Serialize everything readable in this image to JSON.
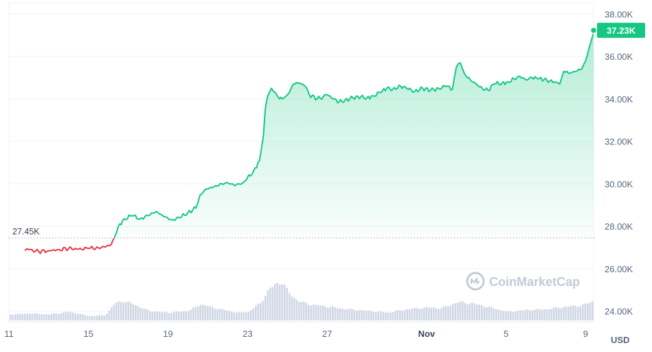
{
  "chart_data": {
    "type": "line",
    "title": "",
    "xlabel": "",
    "ylabel": "",
    "currency_unit": "USD",
    "watermark": "CoinMarketCap",
    "ylim": [
      23500,
      38400
    ],
    "y_ticks": [
      "38.00K",
      "36.00K",
      "34.00K",
      "32.00K",
      "30.00K",
      "28.00K",
      "26.00K",
      "24.00K"
    ],
    "y_tick_values": [
      38000,
      36000,
      34000,
      32000,
      30000,
      28000,
      26000,
      24000
    ],
    "x_range_days": [
      0,
      29.4
    ],
    "x_ticks": [
      {
        "label": "11",
        "day": 0
      },
      {
        "label": "15",
        "day": 4
      },
      {
        "label": "19",
        "day": 8
      },
      {
        "label": "23",
        "day": 12
      },
      {
        "label": "27",
        "day": 16
      },
      {
        "label": "Nov",
        "day": 21,
        "month": true
      },
      {
        "label": "5",
        "day": 25
      },
      {
        "label": "9",
        "day": 29
      }
    ],
    "reference_line": {
      "value": 27450,
      "label": "27.45K"
    },
    "last_price": {
      "value": 37230,
      "label": "37.23K"
    },
    "colors": {
      "up": "#16c784",
      "down": "#ea3943",
      "volume": "#cfd6e4",
      "badge": "#16c784"
    },
    "series": [
      {
        "points": [
          [
            0.8,
            26850
          ],
          [
            1.0,
            26900
          ],
          [
            1.5,
            26800
          ],
          [
            2.0,
            26850
          ],
          [
            2.5,
            26900
          ],
          [
            3.0,
            26950
          ],
          [
            3.5,
            26920
          ],
          [
            4.0,
            26950
          ],
          [
            4.5,
            26980
          ],
          [
            4.9,
            27050
          ],
          [
            5.15,
            27150
          ],
          [
            5.3,
            27450
          ],
          [
            5.5,
            28000
          ],
          [
            5.8,
            28350
          ],
          [
            6.2,
            28500
          ],
          [
            6.6,
            28350
          ],
          [
            7.0,
            28500
          ],
          [
            7.4,
            28700
          ],
          [
            7.8,
            28450
          ],
          [
            8.2,
            28300
          ],
          [
            8.6,
            28400
          ],
          [
            9.0,
            28650
          ],
          [
            9.4,
            28850
          ],
          [
            9.6,
            29450
          ],
          [
            9.9,
            29750
          ],
          [
            10.3,
            29850
          ],
          [
            10.7,
            30000
          ],
          [
            11.0,
            30050
          ],
          [
            11.3,
            29950
          ],
          [
            11.7,
            30000
          ],
          [
            11.9,
            30150
          ],
          [
            12.3,
            30600
          ],
          [
            12.6,
            31100
          ],
          [
            12.8,
            32300
          ],
          [
            12.9,
            33600
          ],
          [
            13.0,
            34100
          ],
          [
            13.2,
            34500
          ],
          [
            13.4,
            34300
          ],
          [
            13.6,
            34000
          ],
          [
            13.9,
            34100
          ],
          [
            14.1,
            34300
          ],
          [
            14.3,
            34700
          ],
          [
            14.6,
            34750
          ],
          [
            14.9,
            34600
          ],
          [
            15.1,
            34200
          ],
          [
            15.5,
            34000
          ],
          [
            15.8,
            34100
          ],
          [
            16.0,
            34200
          ],
          [
            16.3,
            34000
          ],
          [
            16.6,
            33850
          ],
          [
            16.9,
            33950
          ],
          [
            17.3,
            34050
          ],
          [
            17.7,
            34100
          ],
          [
            18.0,
            34050
          ],
          [
            18.3,
            34150
          ],
          [
            18.7,
            34300
          ],
          [
            19.0,
            34500
          ],
          [
            19.3,
            34450
          ],
          [
            19.7,
            34600
          ],
          [
            20.0,
            34500
          ],
          [
            20.4,
            34350
          ],
          [
            20.8,
            34500
          ],
          [
            21.2,
            34400
          ],
          [
            21.6,
            34500
          ],
          [
            22.0,
            34600
          ],
          [
            22.3,
            34450
          ],
          [
            22.5,
            35500
          ],
          [
            22.7,
            35700
          ],
          [
            22.9,
            35200
          ],
          [
            23.2,
            34900
          ],
          [
            23.5,
            34700
          ],
          [
            23.8,
            34500
          ],
          [
            24.1,
            34400
          ],
          [
            24.4,
            34700
          ],
          [
            24.8,
            34750
          ],
          [
            25.1,
            34800
          ],
          [
            25.4,
            34950
          ],
          [
            25.7,
            35050
          ],
          [
            26.0,
            34900
          ],
          [
            26.3,
            35000
          ],
          [
            26.6,
            34950
          ],
          [
            26.9,
            34900
          ],
          [
            27.2,
            34850
          ],
          [
            27.5,
            34800
          ],
          [
            27.7,
            34700
          ],
          [
            27.9,
            35300
          ],
          [
            28.2,
            35200
          ],
          [
            28.5,
            35300
          ],
          [
            28.8,
            35400
          ],
          [
            29.0,
            35800
          ],
          [
            29.2,
            36500
          ],
          [
            29.3,
            36800
          ],
          [
            29.4,
            37230
          ]
        ]
      }
    ],
    "volume": {
      "relative_scale": [
        0,
        1
      ],
      "points": [
        [
          0.0,
          0.14
        ],
        [
          1.0,
          0.16
        ],
        [
          2.0,
          0.14
        ],
        [
          3.0,
          0.2
        ],
        [
          4.0,
          0.1
        ],
        [
          4.8,
          0.12
        ],
        [
          5.3,
          0.4
        ],
        [
          5.7,
          0.45
        ],
        [
          6.2,
          0.38
        ],
        [
          7.0,
          0.22
        ],
        [
          8.0,
          0.18
        ],
        [
          9.0,
          0.22
        ],
        [
          9.6,
          0.38
        ],
        [
          10.2,
          0.3
        ],
        [
          11.0,
          0.22
        ],
        [
          11.5,
          0.18
        ],
        [
          12.0,
          0.2
        ],
        [
          12.6,
          0.4
        ],
        [
          13.0,
          0.7
        ],
        [
          13.4,
          0.85
        ],
        [
          13.7,
          0.9
        ],
        [
          14.0,
          0.65
        ],
        [
          14.5,
          0.45
        ],
        [
          15.0,
          0.38
        ],
        [
          16.0,
          0.32
        ],
        [
          17.0,
          0.26
        ],
        [
          18.0,
          0.22
        ],
        [
          19.0,
          0.18
        ],
        [
          20.0,
          0.26
        ],
        [
          21.0,
          0.3
        ],
        [
          21.7,
          0.28
        ],
        [
          22.5,
          0.42
        ],
        [
          23.2,
          0.4
        ],
        [
          24.0,
          0.32
        ],
        [
          25.0,
          0.2
        ],
        [
          26.0,
          0.24
        ],
        [
          27.0,
          0.26
        ],
        [
          28.0,
          0.32
        ],
        [
          28.8,
          0.35
        ],
        [
          29.4,
          0.45
        ]
      ]
    }
  }
}
